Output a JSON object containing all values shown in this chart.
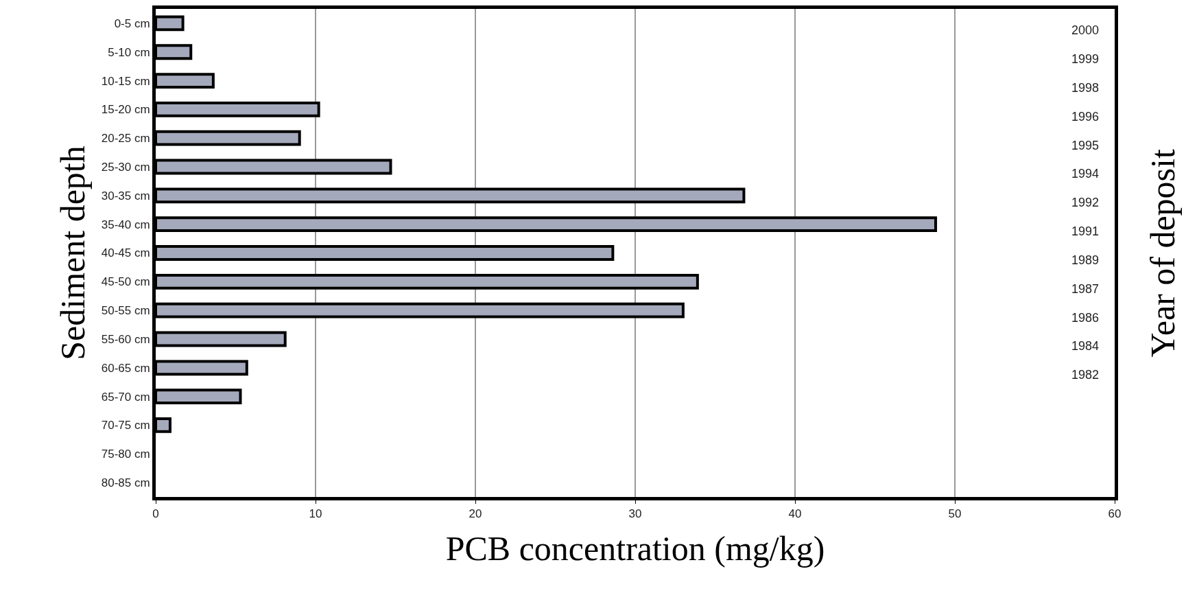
{
  "chart_data": {
    "type": "bar",
    "orientation": "horizontal",
    "xlabel": "PCB concentration (mg/kg)",
    "ylabel": "Sediment depth",
    "y2label": "Year of deposit",
    "categories": [
      "0-5 cm",
      "5-10 cm",
      "10-15 cm",
      "15-20 cm",
      "20-25 cm",
      "25-30 cm",
      "30-35 cm",
      "35-40 cm",
      "40-45 cm",
      "45-50 cm",
      "50-55 cm",
      "55-60 cm",
      "60-65 cm",
      "65-70 cm",
      "70-75 cm",
      "75-80 cm",
      "80-85 cm"
    ],
    "y2_categories": [
      "2000",
      "1999",
      "1998",
      "1996",
      "1995",
      "1994",
      "1992",
      "1991",
      "1989",
      "1987",
      "1986",
      "1984",
      "1982",
      null,
      null,
      null,
      null
    ],
    "values": [
      1.7,
      2.2,
      3.6,
      10.2,
      9.0,
      14.7,
      36.8,
      48.8,
      28.6,
      33.9,
      33.0,
      8.1,
      5.7,
      5.3,
      0.9,
      0,
      0
    ],
    "color": "#a4a9bb",
    "xlim": [
      0,
      60
    ],
    "xticks": [
      0,
      10,
      20,
      30,
      40,
      50,
      60
    ],
    "grid": "x"
  }
}
